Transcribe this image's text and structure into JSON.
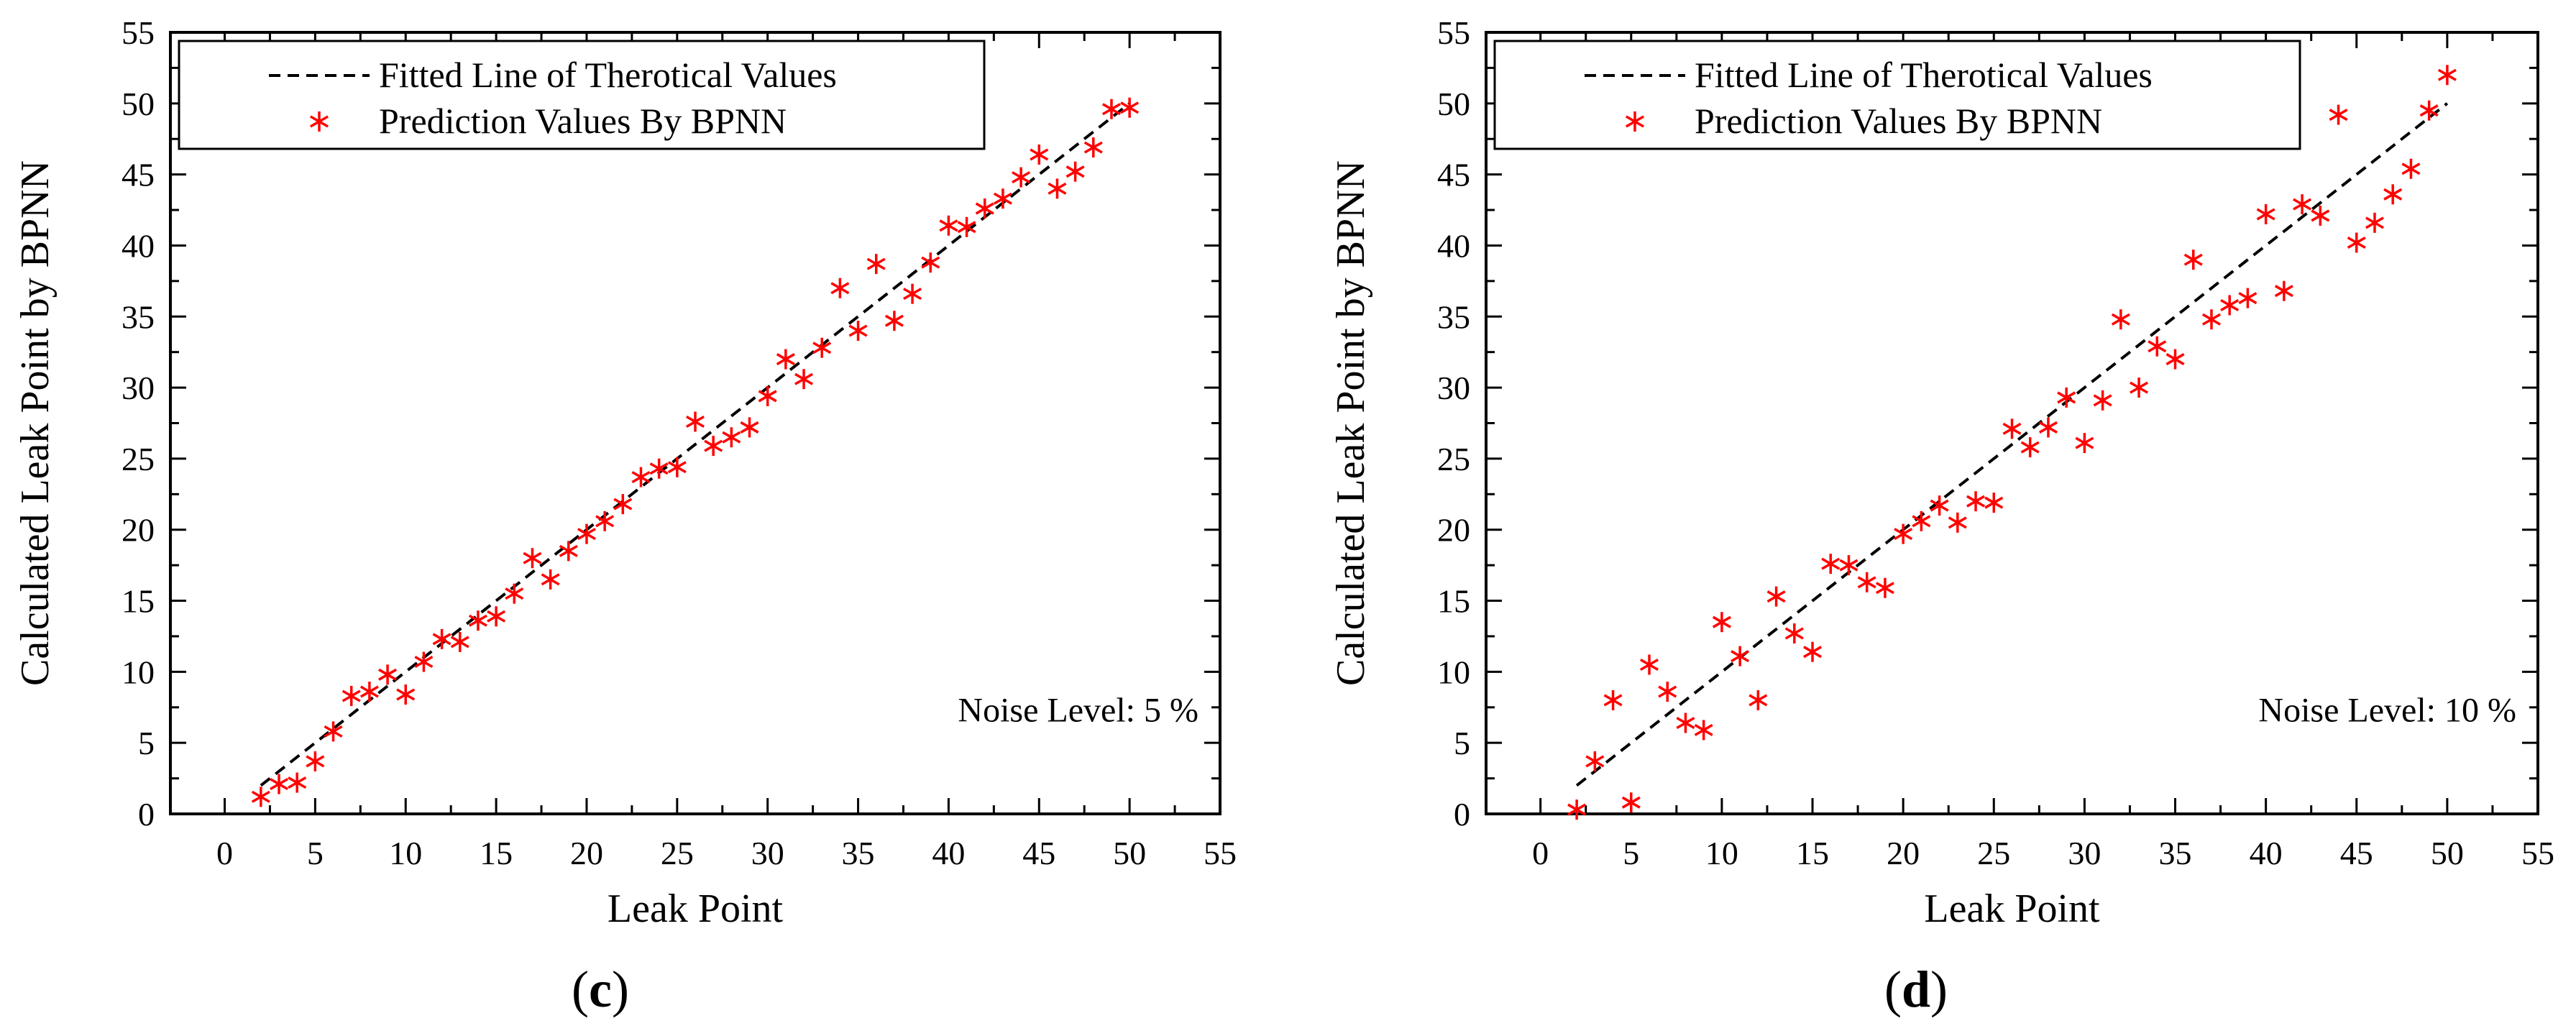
{
  "chart_data": [
    {
      "id": "c",
      "type": "scatter",
      "caption_letter": "c",
      "caption_open": "(",
      "caption_close": ")",
      "xlabel": "Leak Point",
      "ylabel": "Calculated Leak Point by BPNN",
      "xlim": [
        -3,
        55
      ],
      "ylim": [
        0,
        55
      ],
      "x_ticks": [
        0,
        5,
        10,
        15,
        20,
        25,
        30,
        35,
        40,
        45,
        50,
        55
      ],
      "y_ticks": [
        0,
        5,
        10,
        15,
        20,
        25,
        30,
        35,
        40,
        45,
        50,
        55
      ],
      "legend": {
        "position": "top-left",
        "line_label": "Fitted Line of Therotical Values",
        "points_label": "Prediction Values By BPNN"
      },
      "annotation": "Noise Level: 5 %",
      "fitted_line": {
        "x": [
          2,
          50
        ],
        "y": [
          2,
          50
        ]
      },
      "series": [
        {
          "name": "Prediction Values By BPNN",
          "color": "#ff0000",
          "points": [
            [
              2,
              1.2
            ],
            [
              3,
              2.1
            ],
            [
              4,
              2.2
            ],
            [
              5,
              3.7
            ],
            [
              6,
              5.8
            ],
            [
              7,
              8.3
            ],
            [
              8,
              8.6
            ],
            [
              9,
              9.8
            ],
            [
              10,
              8.4
            ],
            [
              11,
              10.7
            ],
            [
              12,
              12.3
            ],
            [
              13,
              12.1
            ],
            [
              14,
              13.6
            ],
            [
              15,
              13.9
            ],
            [
              16,
              15.5
            ],
            [
              17,
              18.0
            ],
            [
              18,
              16.5
            ],
            [
              19,
              18.5
            ],
            [
              20,
              19.7
            ],
            [
              21,
              20.6
            ],
            [
              22,
              21.8
            ],
            [
              23,
              23.7
            ],
            [
              24,
              24.3
            ],
            [
              25,
              24.4
            ],
            [
              26,
              27.6
            ],
            [
              27,
              25.9
            ],
            [
              28,
              26.5
            ],
            [
              29,
              27.2
            ],
            [
              30,
              29.4
            ],
            [
              31,
              32.0
            ],
            [
              32,
              30.6
            ],
            [
              33,
              32.8
            ],
            [
              34,
              37.0
            ],
            [
              35,
              34.0
            ],
            [
              36,
              38.7
            ],
            [
              37,
              34.7
            ],
            [
              38,
              36.6
            ],
            [
              39,
              38.8
            ],
            [
              40,
              41.4
            ],
            [
              41,
              41.3
            ],
            [
              42,
              42.6
            ],
            [
              43,
              43.3
            ],
            [
              44,
              44.8
            ],
            [
              45,
              46.4
            ],
            [
              46,
              44.0
            ],
            [
              47,
              45.2
            ],
            [
              48,
              46.9
            ],
            [
              49,
              49.6
            ],
            [
              50,
              49.7
            ]
          ]
        }
      ]
    },
    {
      "id": "d",
      "type": "scatter",
      "caption_letter": "d",
      "caption_open": "(",
      "caption_close": ")",
      "xlabel": "Leak Point",
      "ylabel": "Calculated Leak Point by BPNN",
      "xlim": [
        -3,
        55
      ],
      "ylim": [
        0,
        55
      ],
      "x_ticks": [
        0,
        5,
        10,
        15,
        20,
        25,
        30,
        35,
        40,
        45,
        50,
        55
      ],
      "y_ticks": [
        0,
        5,
        10,
        15,
        20,
        25,
        30,
        35,
        40,
        45,
        50,
        55
      ],
      "legend": {
        "position": "top-left",
        "line_label": "Fitted Line of Therotical Values",
        "points_label": "Prediction Values By BPNN"
      },
      "annotation": "Noise Level: 10 %",
      "fitted_line": {
        "x": [
          2,
          50
        ],
        "y": [
          2,
          50
        ]
      },
      "series": [
        {
          "name": "Prediction Values By BPNN",
          "color": "#ff0000",
          "points": [
            [
              2,
              0.3
            ],
            [
              3,
              3.7
            ],
            [
              4,
              8.0
            ],
            [
              5,
              0.8
            ],
            [
              6,
              10.5
            ],
            [
              7,
              8.6
            ],
            [
              8,
              6.4
            ],
            [
              9,
              5.9
            ],
            [
              10,
              13.5
            ],
            [
              11,
              11.1
            ],
            [
              12,
              8.0
            ],
            [
              13,
              15.3
            ],
            [
              14,
              12.7
            ],
            [
              15,
              11.4
            ],
            [
              16,
              17.6
            ],
            [
              17,
              17.5
            ],
            [
              18,
              16.3
            ],
            [
              19,
              15.9
            ],
            [
              20,
              19.7
            ],
            [
              21,
              20.6
            ],
            [
              22,
              21.7
            ],
            [
              23,
              20.5
            ],
            [
              24,
              22.0
            ],
            [
              25,
              21.9
            ],
            [
              26,
              27.1
            ],
            [
              27,
              25.8
            ],
            [
              28,
              27.2
            ],
            [
              29,
              29.3
            ],
            [
              30,
              26.1
            ],
            [
              31,
              29.1
            ],
            [
              32,
              34.8
            ],
            [
              33,
              30.0
            ],
            [
              34,
              32.9
            ],
            [
              35,
              32.0
            ],
            [
              36,
              39.0
            ],
            [
              37,
              34.8
            ],
            [
              38,
              35.8
            ],
            [
              39,
              36.3
            ],
            [
              40,
              42.2
            ],
            [
              41,
              36.8
            ],
            [
              42,
              42.9
            ],
            [
              43,
              42.1
            ],
            [
              44,
              49.2
            ],
            [
              45,
              40.2
            ],
            [
              46,
              41.6
            ],
            [
              47,
              43.6
            ],
            [
              48,
              45.4
            ],
            [
              49,
              49.5
            ],
            [
              50,
              52.0
            ]
          ]
        }
      ]
    }
  ]
}
